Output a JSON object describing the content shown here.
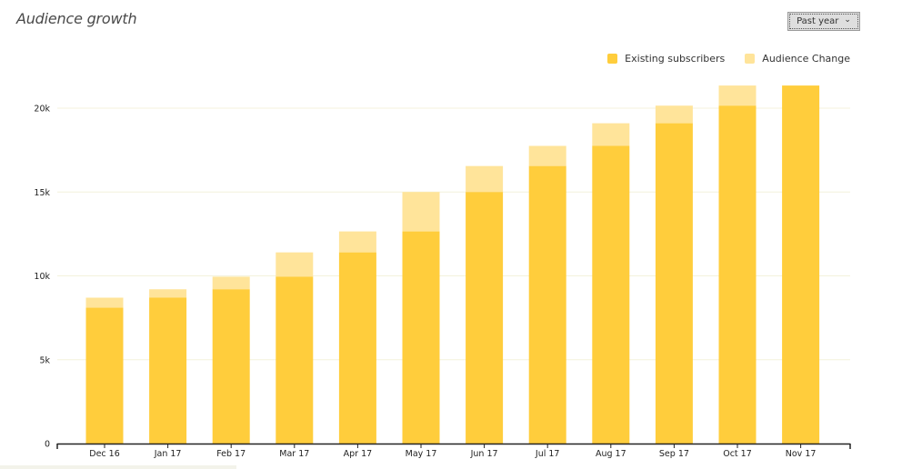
{
  "header": {
    "title": "Audience growth",
    "range_label": "Past year"
  },
  "icons": {
    "range_dropdown": "chevron-down-icon"
  },
  "colors": {
    "existing": "#ffcd3c",
    "change": "#ffe49a",
    "grid": "#f4f2dc",
    "axis": "#222222"
  },
  "chart_data": {
    "type": "bar",
    "stacked": true,
    "categories": [
      "Dec 16",
      "Jan 17",
      "Feb 17",
      "Mar 17",
      "Apr 17",
      "May 17",
      "Jun 17",
      "Jul 17",
      "Aug 17",
      "Sep 17",
      "Oct 17",
      "Nov 17"
    ],
    "series": [
      {
        "name": "Existing subscribers",
        "values": [
          8100,
          8700,
          9200,
          9950,
          11400,
          12650,
          15000,
          16550,
          17750,
          19100,
          20150,
          21350
        ]
      },
      {
        "name": "Audience Change",
        "values": [
          600,
          500,
          750,
          1450,
          1250,
          2350,
          1550,
          1200,
          1350,
          1050,
          1200,
          0
        ]
      }
    ],
    "yticks": [
      0,
      5000,
      10000,
      15000,
      20000
    ],
    "ytick_labels": [
      "0",
      "5k",
      "10k",
      "15k",
      "20k"
    ],
    "ylim": [
      0,
      20000
    ],
    "legend": "top-right",
    "grid": true
  }
}
